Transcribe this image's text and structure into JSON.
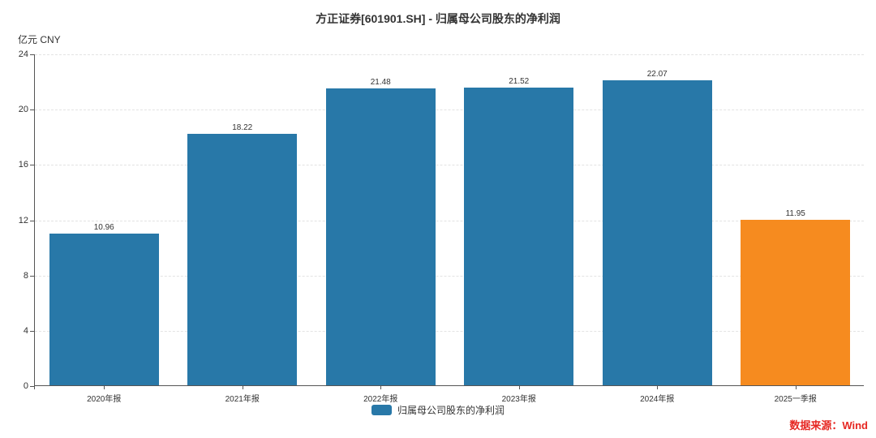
{
  "header": {
    "title": "方正证券[601901.SH] - 归属母公司股东的净利润",
    "unit_label": "亿元 CNY"
  },
  "legend": {
    "label": "归属母公司股东的净利润",
    "swatch_color": "#2878a8"
  },
  "footer": {
    "source": "数据来源：Wind"
  },
  "colors": {
    "bar_blue": "#2878a8",
    "bar_orange": "#f68b1f",
    "source_red": "#e62823",
    "text": "#333333",
    "axis": "#555555",
    "gridline": "#e3e3e3"
  },
  "chart_data": {
    "type": "bar",
    "title": "方正证券[601901.SH] - 归属母公司股东的净利润",
    "xlabel": "",
    "ylabel": "亿元 CNY",
    "categories": [
      "2020年报",
      "2021年报",
      "2022年报",
      "2023年报",
      "2024年报",
      "2025一季报"
    ],
    "values": [
      10.96,
      18.22,
      21.48,
      21.52,
      22.07,
      11.95
    ],
    "value_labels": [
      "10.96",
      "18.22",
      "21.48",
      "21.52",
      "22.07",
      "11.95"
    ],
    "bar_colors": [
      "#2878a8",
      "#2878a8",
      "#2878a8",
      "#2878a8",
      "#2878a8",
      "#f68b1f"
    ],
    "ylim": [
      0,
      24
    ],
    "yticks": [
      0,
      4,
      8,
      12,
      16,
      20,
      24
    ],
    "grid": "horizontal-dashed",
    "legend_entries": [
      "归属母公司股东的净利润"
    ],
    "legend_position": "bottom-center"
  }
}
